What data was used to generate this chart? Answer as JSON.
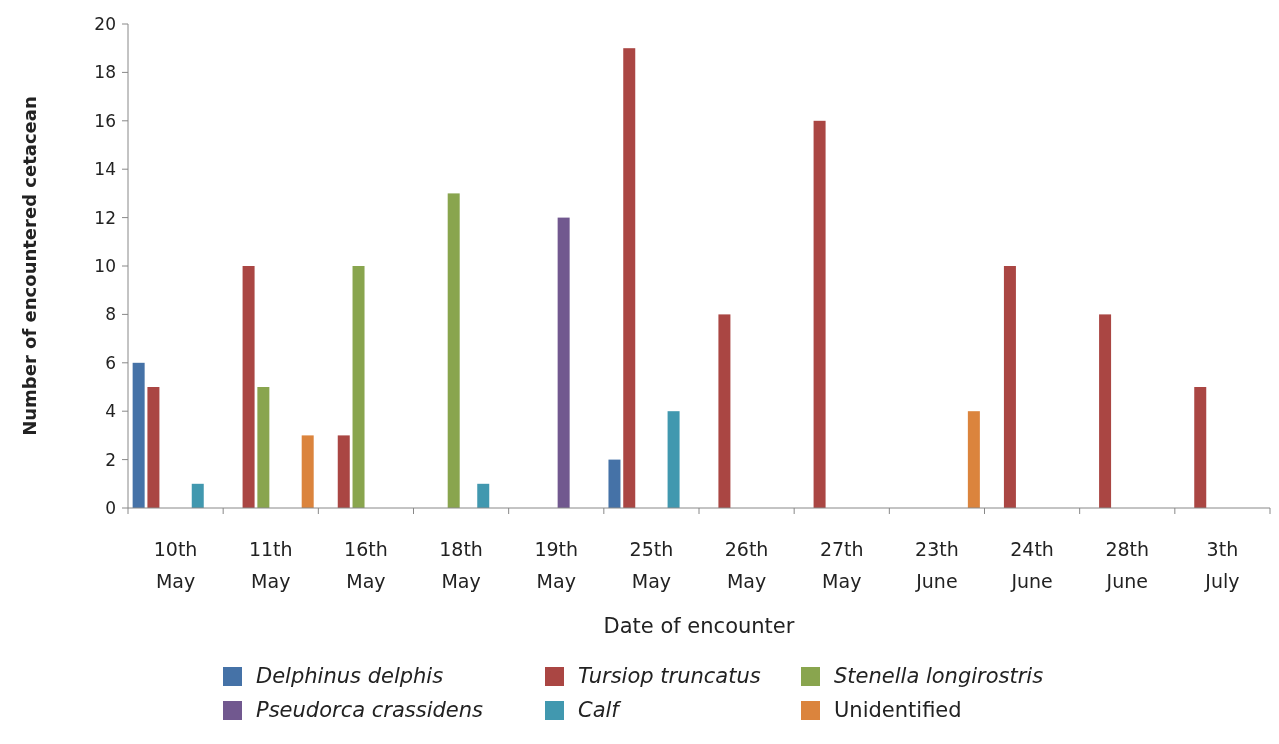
{
  "chart_data": {
    "type": "bar",
    "xlabel": "Date of encounter",
    "ylabel": "Number of encountered cetacean",
    "categories": [
      "10th May",
      "11th May",
      "16th May",
      "18th May",
      "19th May",
      "25th May",
      "26th May",
      "27th May",
      "23th June",
      "24th June",
      "28th June",
      "3th July"
    ],
    "series": [
      {
        "name": "Delphinus delphis",
        "color": "#4572a7",
        "values": [
          6,
          0,
          0,
          0,
          0,
          2,
          0,
          0,
          0,
          0,
          0,
          0
        ]
      },
      {
        "name": "Tursiop truncatus",
        "color": "#aa4643",
        "values": [
          5,
          10,
          3,
          0,
          0,
          19,
          8,
          16,
          0,
          10,
          8,
          5
        ]
      },
      {
        "name": "Stenella longirostris",
        "color": "#89a54e",
        "values": [
          0,
          5,
          10,
          13,
          0,
          0,
          0,
          0,
          0,
          0,
          0,
          0
        ]
      },
      {
        "name": "Pseudorca crassidens",
        "color": "#71588f",
        "values": [
          0,
          0,
          0,
          0,
          12,
          0,
          0,
          0,
          0,
          0,
          0,
          0
        ]
      },
      {
        "name": "Calf",
        "color": "#4198af",
        "values": [
          1,
          0,
          0,
          1,
          0,
          4,
          0,
          0,
          0,
          0,
          0,
          0
        ]
      },
      {
        "name": "Unidentified",
        "color": "#db843d",
        "values": [
          0,
          3,
          0,
          0,
          0,
          0,
          0,
          0,
          4,
          0,
          0,
          0
        ]
      }
    ],
    "ylim": [
      0,
      20
    ],
    "yticks": [
      0,
      2,
      4,
      6,
      8,
      10,
      12,
      14,
      16,
      18,
      20
    ],
    "grid": false,
    "legend": "bottom"
  }
}
